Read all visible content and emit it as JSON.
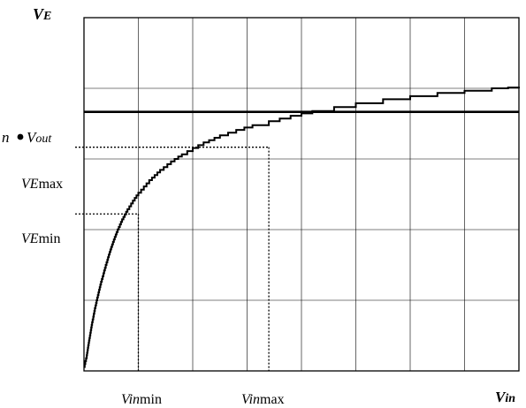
{
  "chart_data": {
    "type": "line",
    "title": "",
    "xlabel": "Vin",
    "ylabel": "VE",
    "grid": true,
    "xlim": [
      0,
      8
    ],
    "ylim": [
      0,
      4.5
    ],
    "x_grid_divisions": 8,
    "y_grid_divisions": 5,
    "series": [
      {
        "values_x": [
          0,
          0.05,
          0.1,
          0.15,
          0.2,
          0.3,
          0.4,
          0.5,
          0.6,
          0.7,
          0.8,
          0.9,
          1.0,
          1.1,
          1.2,
          1.4,
          1.6,
          1.8,
          2.0,
          2.2,
          2.5,
          2.8,
          3.1,
          3.4,
          3.8,
          4.2,
          4.6,
          5.0,
          5.5,
          6.0,
          6.5,
          7.0,
          7.5,
          7.8,
          8.0
        ],
        "values_y": [
          0.05,
          0.2,
          0.42,
          0.62,
          0.8,
          1.1,
          1.35,
          1.58,
          1.77,
          1.93,
          2.06,
          2.17,
          2.27,
          2.35,
          2.43,
          2.56,
          2.67,
          2.76,
          2.84,
          2.91,
          3.0,
          3.07,
          3.13,
          3.18,
          3.25,
          3.31,
          3.36,
          3.41,
          3.46,
          3.5,
          3.54,
          3.57,
          3.6,
          3.61,
          3.62
        ]
      }
    ],
    "reference_lines": {
      "n_vout": {
        "y": 3.3,
        "label_n": "n",
        "label_v": "V",
        "label_sub": "out"
      },
      "ve_max": {
        "y": 2.85,
        "label_v": "V",
        "label_sub": "E",
        "label_suffix": "max"
      },
      "ve_min": {
        "y": 2.0,
        "label_v": "V",
        "label_sub": "E",
        "label_suffix": "min"
      },
      "vin_min": {
        "x": 1.0,
        "label_v": "V",
        "label_sub": "in",
        "label_suffix": "min"
      },
      "vin_max": {
        "x": 3.4,
        "label_v": "V",
        "label_sub": "in",
        "label_suffix": "max"
      }
    },
    "axis_labels": {
      "y_main": "V",
      "y_sub": "E",
      "x_main": "V",
      "x_sub": "in"
    }
  }
}
